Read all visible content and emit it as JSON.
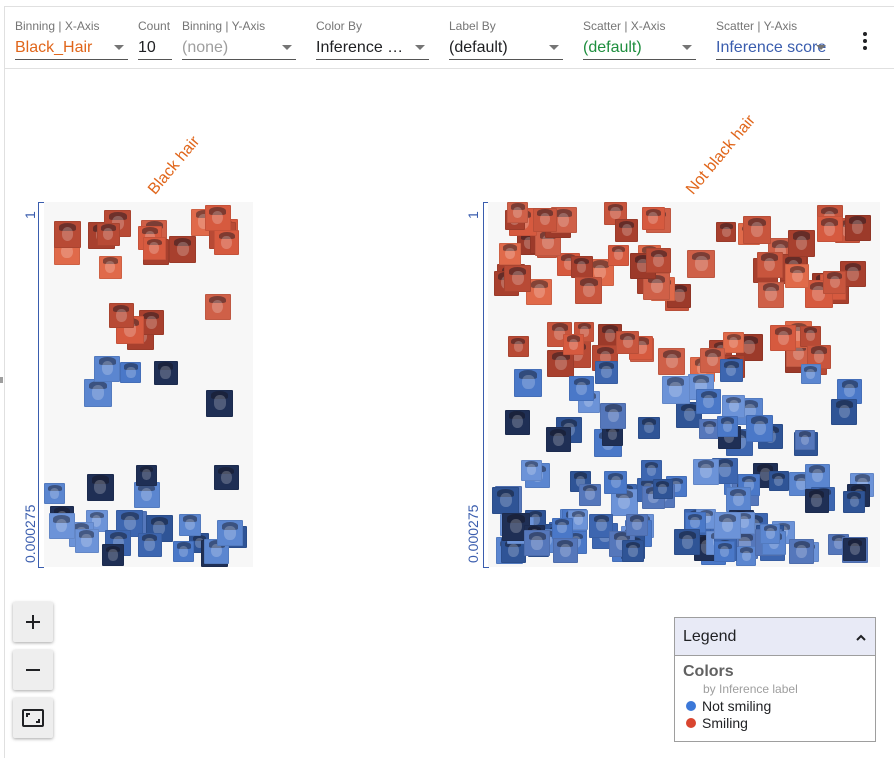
{
  "colors": {
    "accent_orange": "#e0661b",
    "accent_green": "#1e8e3e",
    "accent_blue": "#3a5dae",
    "smiling": "#d9452f",
    "not_smiling": "#3c78d8"
  },
  "toolbar": {
    "controls": [
      {
        "label": "Binning | X-Axis",
        "value": "Black_Hair"
      },
      {
        "label": "Count",
        "value": "10"
      },
      {
        "label": "Binning | Y-Axis",
        "value": "(none)"
      },
      {
        "label": "Color By",
        "value": "Inference …"
      },
      {
        "label": "Label By",
        "value": "(default)"
      },
      {
        "label": "Scatter | X-Axis",
        "value": "(default)"
      },
      {
        "label": "Scatter | Y-Axis",
        "value": "Inference score"
      }
    ],
    "more_icon": "more-vert-icon"
  },
  "plot": {
    "columns": [
      {
        "title": "Black hair",
        "y_top_tick": "1",
        "y_bottom_tick": "0.000275"
      },
      {
        "title": "Not black hair",
        "y_top_tick": "1",
        "y_bottom_tick": "0.000275"
      }
    ]
  },
  "zoom": {
    "zoom_in_icon": "plus-icon",
    "zoom_out_icon": "minus-icon",
    "fit_icon": "fit-screen-icon"
  },
  "legend": {
    "title": "Legend",
    "section": "Colors",
    "by": "by Inference label",
    "items": [
      {
        "label": "Not smiling",
        "color": "#3c78d8"
      },
      {
        "label": "Smiling",
        "color": "#d9452f"
      }
    ]
  }
}
